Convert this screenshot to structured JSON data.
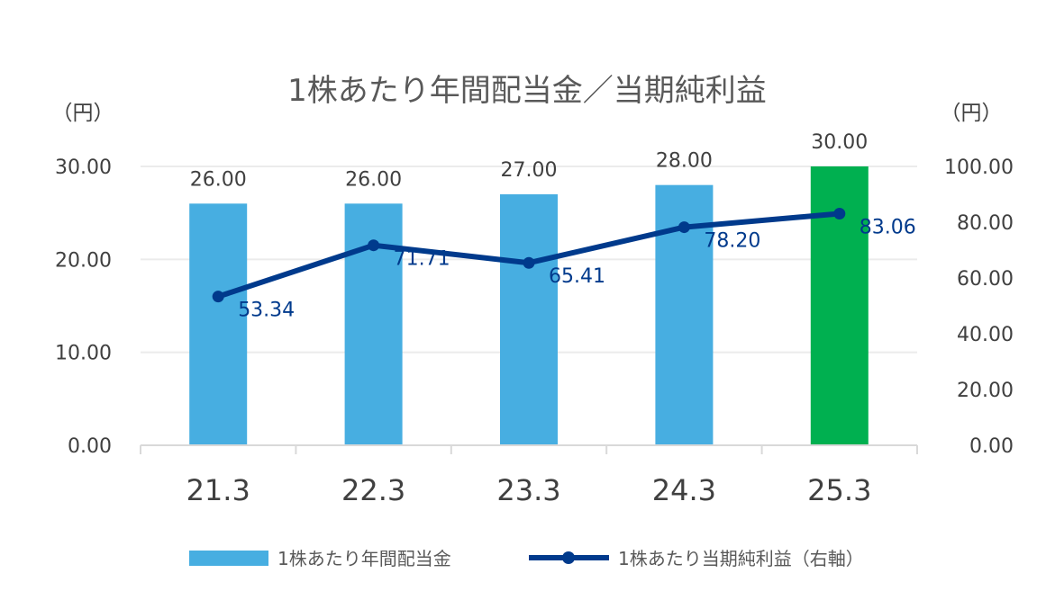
{
  "chart_data": {
    "type": "bar",
    "title": "1株あたり年間配当金／当期純利益",
    "categories": [
      "21.3",
      "22.3",
      "23.3",
      "24.3",
      "25.3"
    ],
    "left_axis": {
      "unit_label": "（円）",
      "ylim": [
        0,
        30
      ],
      "ticks": [
        "0.00",
        "10.00",
        "20.00",
        "30.00"
      ]
    },
    "right_axis": {
      "unit_label": "（円）",
      "ylim": [
        0,
        100
      ],
      "ticks": [
        "0.00",
        "20.00",
        "40.00",
        "60.00",
        "80.00",
        "100.00"
      ]
    },
    "series": [
      {
        "name": "1株あたり年間配当金",
        "type": "bar",
        "axis": "left",
        "values": [
          26.0,
          26.0,
          27.0,
          28.0,
          30.0
        ],
        "labels": [
          "26.00",
          "26.00",
          "27.00",
          "28.00",
          "30.00"
        ],
        "color": "#47AEE1",
        "highlight_color": "#00B050",
        "highlight_index": 4
      },
      {
        "name": "1株あたり当期純利益（右軸）",
        "type": "line",
        "axis": "right",
        "values": [
          53.34,
          71.71,
          65.41,
          78.2,
          83.06
        ],
        "labels": [
          "53.34",
          "71.71",
          "65.41",
          "78.20",
          "83.06"
        ],
        "color": "#003A8C"
      }
    ],
    "grid": true,
    "legend_position": "bottom"
  }
}
